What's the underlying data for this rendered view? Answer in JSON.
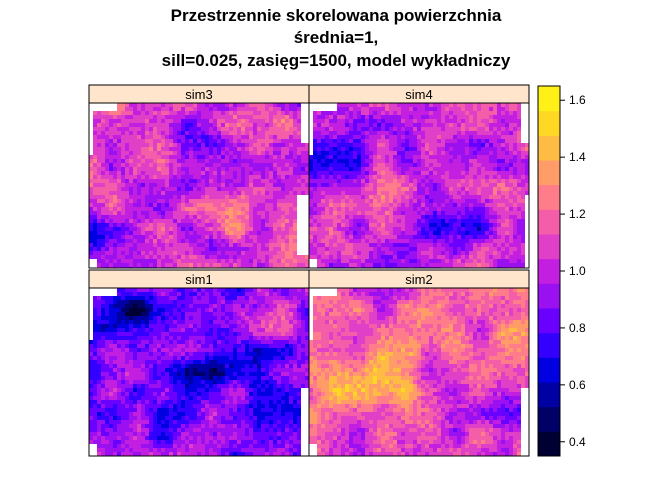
{
  "title": {
    "line1": "Przestrzennie skorelowana powierzchnia",
    "line2": "średnia=1,",
    "line3": "sill=0.025, zasięg=1500, model wykładniczy"
  },
  "chart_data": {
    "type": "heatmap",
    "title": "Przestrzennie skorelowana powierzchnia średnia=1, sill=0.025, zasięg=1500, model wykładniczy",
    "panels": [
      {
        "name": "sim3",
        "mean_level": "medium-high",
        "low_spot": "bottom-left"
      },
      {
        "name": "sim4",
        "mean_level": "medium",
        "low_spot": "left and center-right"
      },
      {
        "name": "sim1",
        "mean_level": "low",
        "low_spot": "upper-left and center"
      },
      {
        "name": "sim2",
        "mean_level": "high",
        "high_spot": "left-center"
      }
    ],
    "colorbar": {
      "ticks": [
        0.4,
        0.6,
        0.8,
        1.0,
        1.2,
        1.4,
        1.6
      ],
      "tick_labels": [
        "0.4",
        "0.6",
        "0.8",
        "1.0",
        "1.2",
        "1.4",
        "1.6"
      ],
      "range": [
        0.35,
        1.65
      ],
      "colors": [
        "#000033",
        "#000066",
        "#0000a3",
        "#0000e0",
        "#3300ff",
        "#6a00ff",
        "#9a10f0",
        "#c21fe0",
        "#e040c8",
        "#f45ea8",
        "#ff7c8a",
        "#ff9c68",
        "#ffbc44",
        "#ffd824",
        "#fff018"
      ]
    },
    "strip_color": "#ffe5cc"
  }
}
